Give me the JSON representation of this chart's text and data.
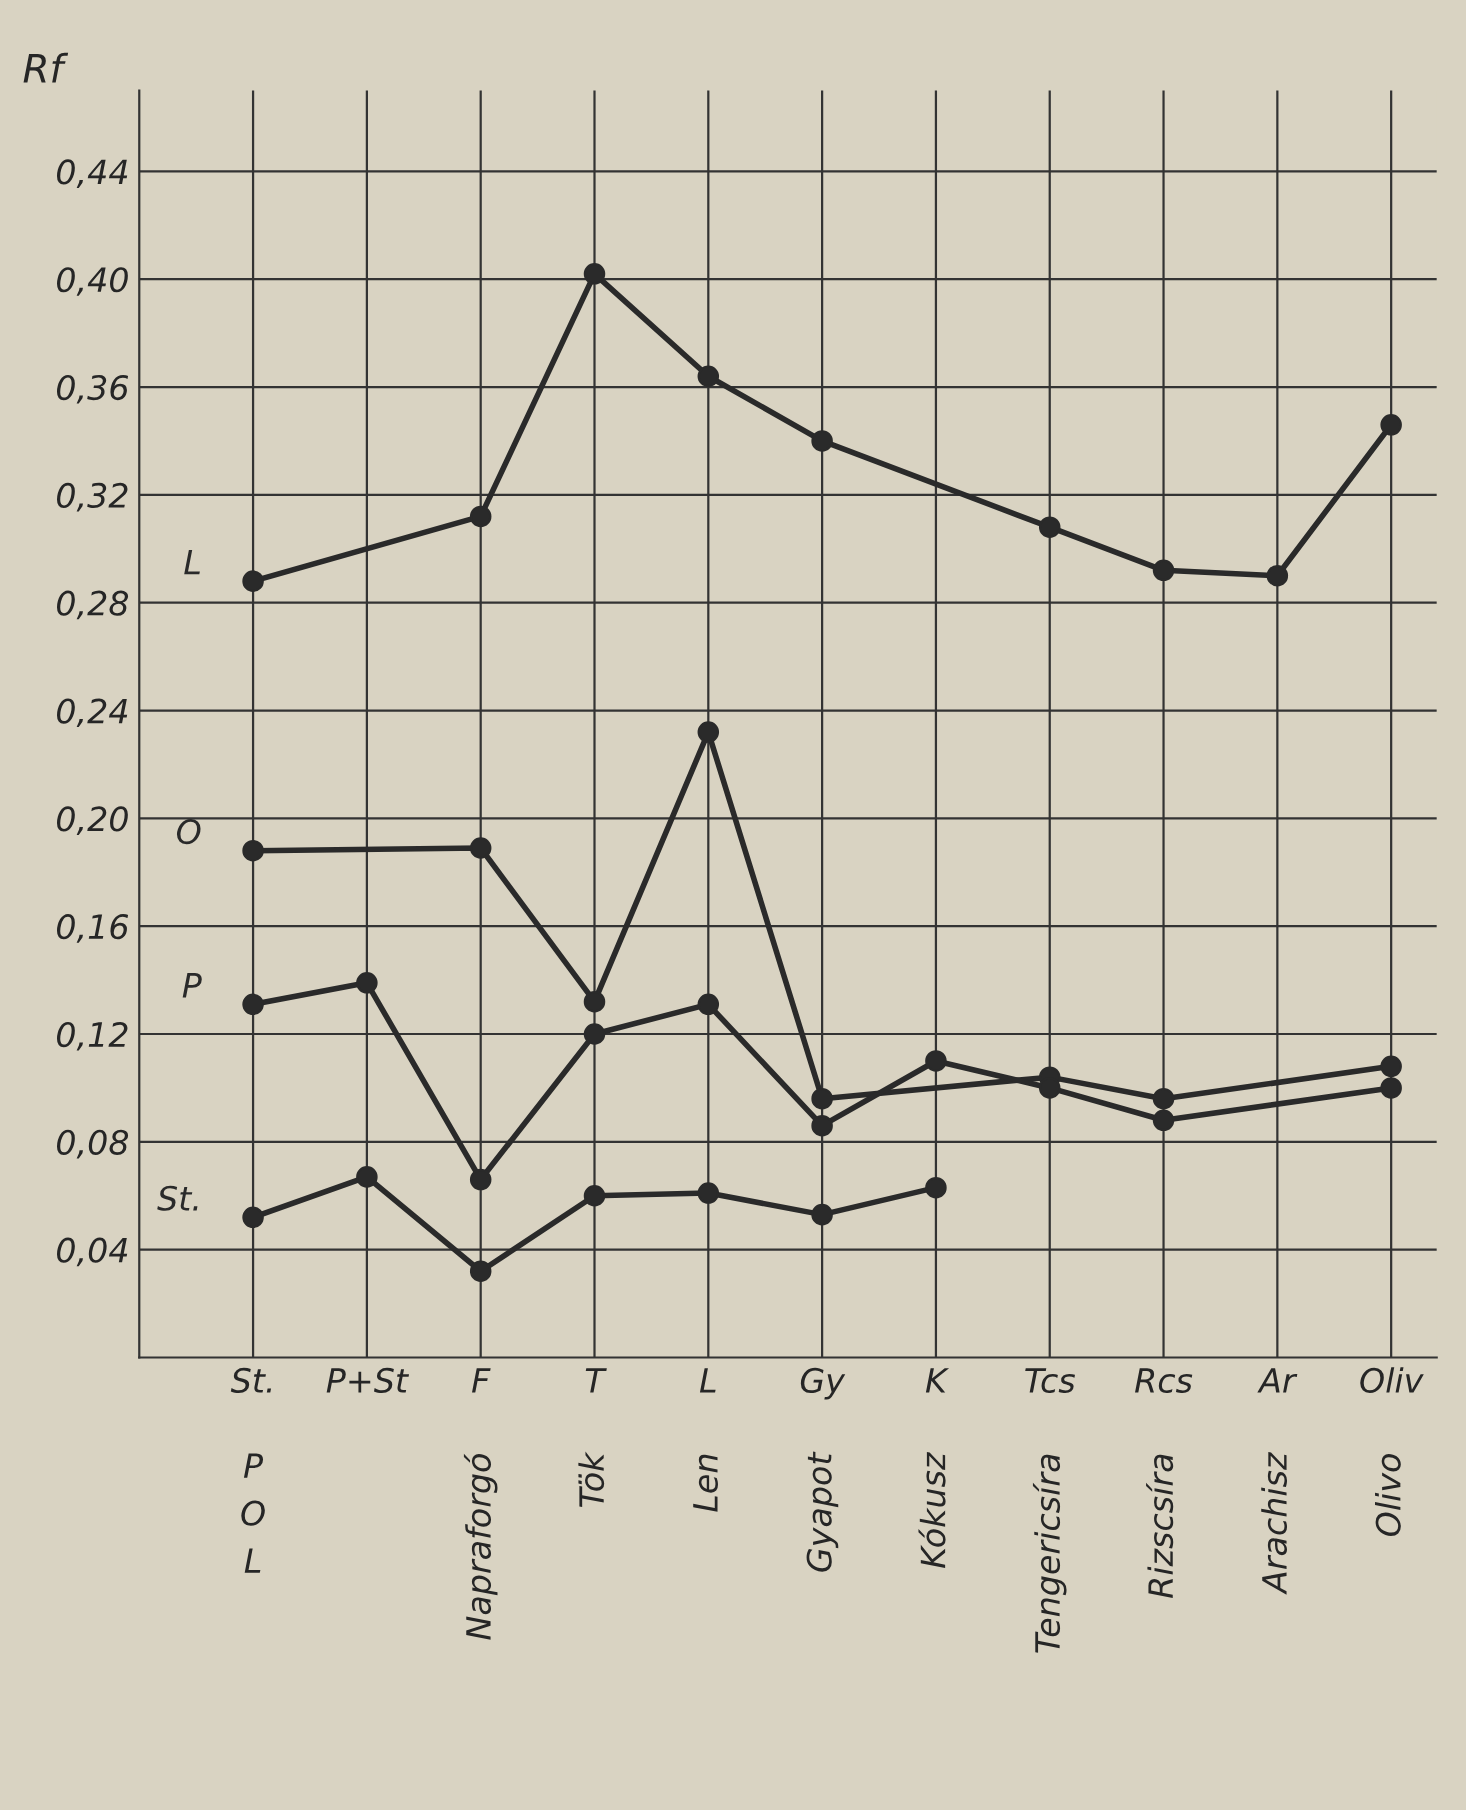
{
  "chart_data": {
    "type": "line",
    "ylabel": "Rf",
    "categories": [
      "St.\nP\nO\nL",
      "P+St",
      "F\nNapraforgó",
      "T\nTök",
      "L\nLen",
      "Gy\nGyapot",
      "K\nKókusz",
      "Tcs\nTengericsíra",
      "Rcs\nRizscsíra",
      "Ar\nArachisz",
      "Oliv\nOlivo"
    ],
    "series": [
      {
        "name": "L",
        "color": "#2a2a2a",
        "values": [
          0.288,
          null,
          0.312,
          0.402,
          0.364,
          0.34,
          null,
          0.308,
          0.292,
          0.29,
          0.346
        ]
      },
      {
        "name": "O",
        "color": "#2a2a2a",
        "values": [
          0.188,
          null,
          0.189,
          0.132,
          0.232,
          0.096,
          null,
          0.104,
          0.096,
          null,
          0.108
        ]
      },
      {
        "name": "P",
        "color": "#2a2a2a",
        "values": [
          0.131,
          0.139,
          0.066,
          0.12,
          0.131,
          0.086,
          0.11,
          0.1,
          0.088,
          null,
          0.1
        ]
      },
      {
        "name": "St.",
        "color": "#2a2a2a",
        "values": [
          0.052,
          0.067,
          0.032,
          0.06,
          0.061,
          0.053,
          0.063,
          null,
          null,
          null,
          null
        ]
      }
    ],
    "ylim": [
      0,
      0.47
    ],
    "yticks": [
      {
        "value": 0.04,
        "label": "0,04"
      },
      {
        "value": 0.08,
        "label": "0,08"
      },
      {
        "value": 0.12,
        "label": "0,12"
      },
      {
        "value": 0.16,
        "label": "0,16"
      },
      {
        "value": 0.2,
        "label": "0,20"
      },
      {
        "value": 0.24,
        "label": "0,24"
      },
      {
        "value": 0.28,
        "label": "0,28"
      },
      {
        "value": 0.32,
        "label": "0,32"
      },
      {
        "value": 0.36,
        "label": "0,36"
      },
      {
        "value": 0.4,
        "label": "0,40"
      },
      {
        "value": 0.44,
        "label": "0,44"
      }
    ],
    "grid": true,
    "marker": "circle",
    "line_style": "solid",
    "legend": false
  }
}
